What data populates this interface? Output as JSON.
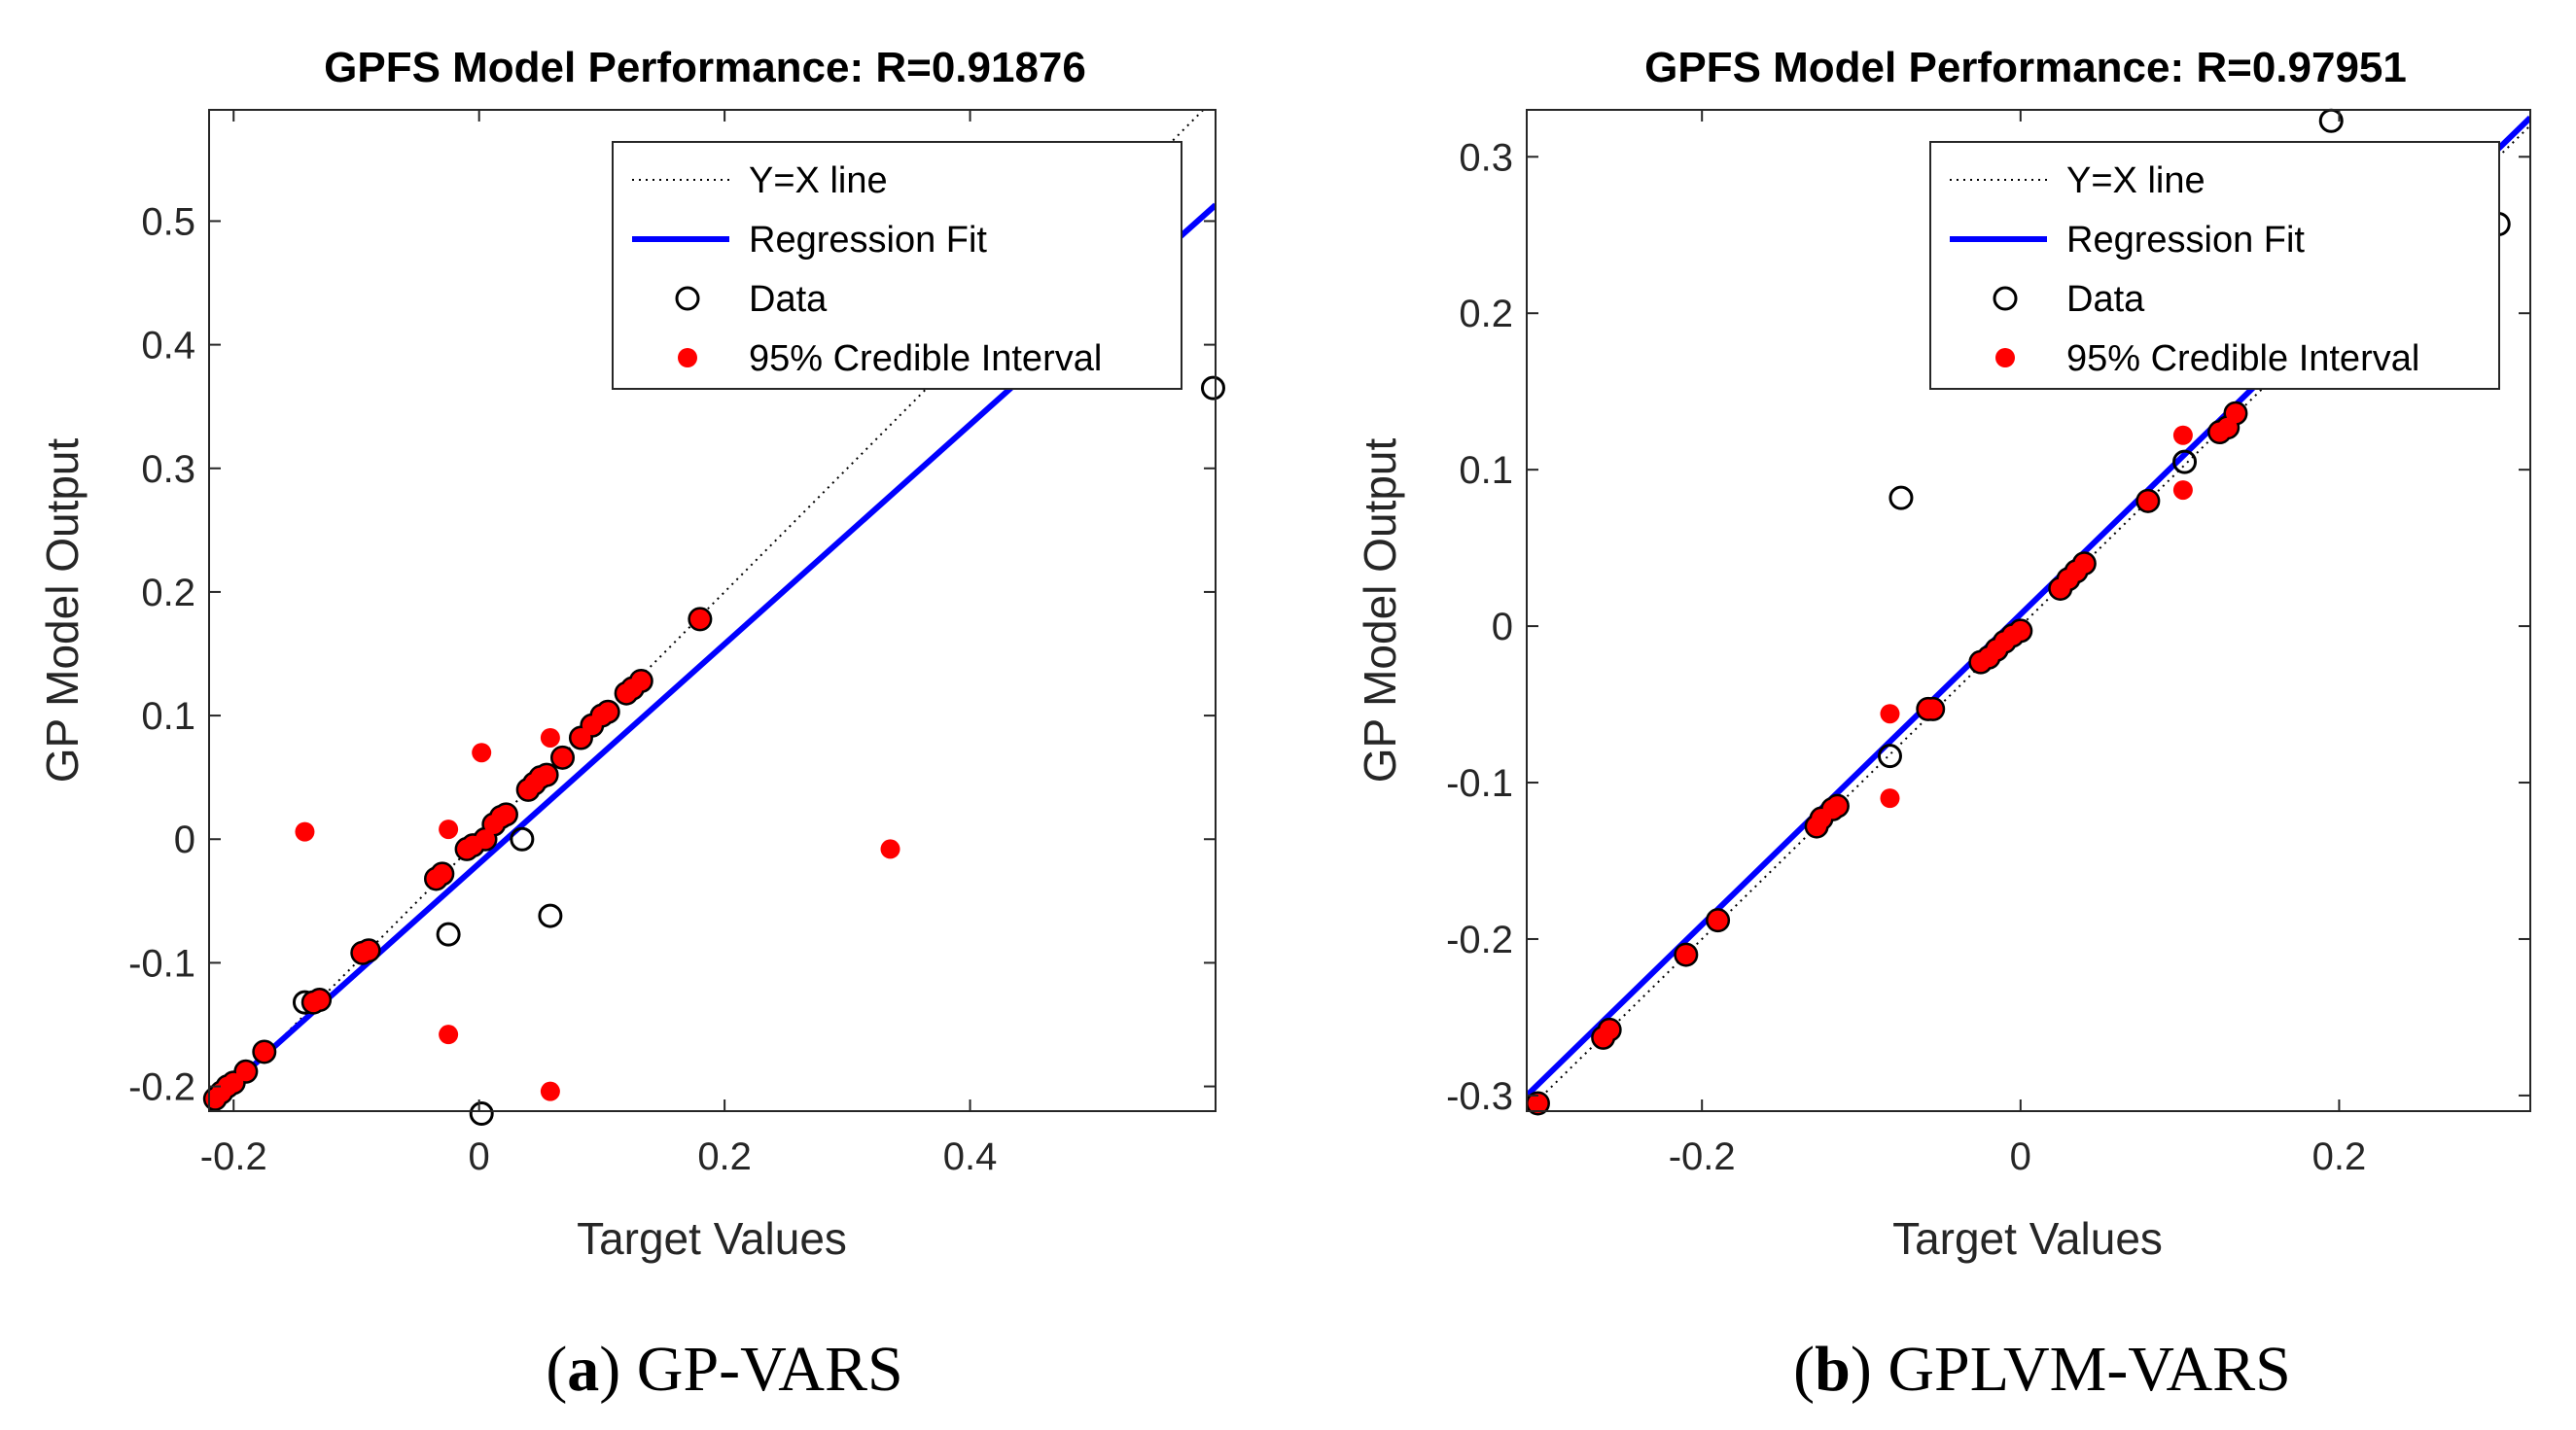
{
  "chart_data": [
    {
      "type": "scatter",
      "title": "GPFS Model Performance: R=0.91876",
      "xlabel": "Target Values",
      "ylabel": "GP Model Output",
      "xlim": [
        -0.22,
        0.6
      ],
      "ylim": [
        -0.22,
        0.59
      ],
      "xticks": [
        -0.2,
        0,
        0.2,
        0.4
      ],
      "xtick_labels": [
        "-0.2",
        "0",
        "0.2",
        "0.4"
      ],
      "yticks": [
        -0.2,
        -0.1,
        0,
        0.1,
        0.2,
        0.3,
        0.4,
        0.5
      ],
      "ytick_labels": [
        "-0.2",
        "-0.1",
        "0",
        "0.1",
        "0.2",
        "0.3",
        "0.4",
        "0.5"
      ],
      "grid": false,
      "legend_position": "top-right",
      "legend": [
        {
          "label": "Y=X line",
          "kind": "dotted-line",
          "color": "#000000"
        },
        {
          "label": "Regression Fit",
          "kind": "line",
          "color": "#0000ff"
        },
        {
          "label": "Data",
          "kind": "open-circle",
          "color": "#000000"
        },
        {
          "label": "95% Credible Interval",
          "kind": "dot",
          "color": "#ff0000"
        }
      ],
      "identity_line": {
        "x": [
          -0.22,
          0.6
        ],
        "y": [
          -0.22,
          0.6
        ]
      },
      "regression_fit": {
        "x": [
          -0.22,
          0.6
        ],
        "y": [
          -0.215,
          0.513
        ]
      },
      "data_points": [
        [
          -0.215,
          -0.21
        ],
        [
          -0.21,
          -0.205
        ],
        [
          -0.205,
          -0.2
        ],
        [
          -0.2,
          -0.197
        ],
        [
          -0.19,
          -0.188
        ],
        [
          -0.175,
          -0.172
        ],
        [
          -0.142,
          -0.132
        ],
        [
          -0.135,
          -0.132
        ],
        [
          -0.13,
          -0.13
        ],
        [
          -0.095,
          -0.092
        ],
        [
          -0.09,
          -0.09
        ],
        [
          -0.035,
          -0.032
        ],
        [
          -0.03,
          -0.028
        ],
        [
          -0.025,
          -0.077
        ],
        [
          -0.01,
          -0.008
        ],
        [
          -0.005,
          -0.005
        ],
        [
          0.002,
          -0.222
        ],
        [
          0.005,
          0.0
        ],
        [
          0.012,
          0.012
        ],
        [
          0.018,
          0.018
        ],
        [
          0.022,
          0.02
        ],
        [
          0.035,
          0.0
        ],
        [
          0.04,
          0.04
        ],
        [
          0.045,
          0.045
        ],
        [
          0.05,
          0.05
        ],
        [
          0.055,
          0.052
        ],
        [
          0.058,
          -0.062
        ],
        [
          0.068,
          0.066
        ],
        [
          0.083,
          0.082
        ],
        [
          0.092,
          0.092
        ],
        [
          0.1,
          0.1
        ],
        [
          0.105,
          0.103
        ],
        [
          0.12,
          0.118
        ],
        [
          0.125,
          0.122
        ],
        [
          0.132,
          0.128
        ],
        [
          0.18,
          0.178
        ],
        [
          0.598,
          0.365
        ]
      ],
      "credible_interval": [
        [
          -0.215,
          -0.21
        ],
        [
          -0.21,
          -0.205
        ],
        [
          -0.205,
          -0.2
        ],
        [
          -0.2,
          -0.197
        ],
        [
          -0.19,
          -0.188
        ],
        [
          -0.175,
          -0.172
        ],
        [
          -0.142,
          0.006
        ],
        [
          -0.135,
          -0.132
        ],
        [
          -0.13,
          -0.13
        ],
        [
          -0.095,
          -0.092
        ],
        [
          -0.09,
          -0.09
        ],
        [
          -0.035,
          -0.032
        ],
        [
          -0.03,
          -0.028
        ],
        [
          -0.025,
          0.008
        ],
        [
          -0.025,
          -0.158
        ],
        [
          -0.01,
          -0.008
        ],
        [
          -0.005,
          -0.005
        ],
        [
          0.002,
          0.07
        ],
        [
          0.005,
          0.0
        ],
        [
          0.012,
          0.012
        ],
        [
          0.018,
          0.018
        ],
        [
          0.022,
          0.02
        ],
        [
          0.04,
          0.04
        ],
        [
          0.045,
          0.045
        ],
        [
          0.05,
          0.05
        ],
        [
          0.055,
          0.052
        ],
        [
          0.058,
          0.082
        ],
        [
          0.058,
          -0.204
        ],
        [
          0.068,
          0.066
        ],
        [
          0.083,
          0.082
        ],
        [
          0.092,
          0.092
        ],
        [
          0.1,
          0.1
        ],
        [
          0.105,
          0.103
        ],
        [
          0.12,
          0.118
        ],
        [
          0.125,
          0.122
        ],
        [
          0.132,
          0.128
        ],
        [
          0.18,
          0.178
        ],
        [
          0.335,
          -0.008
        ]
      ],
      "caption_label": "a",
      "caption_text": "GP-VARS"
    },
    {
      "type": "scatter",
      "title": "GPFS Model Performance: R=0.97951",
      "xlabel": "Target Values",
      "ylabel": "GP Model Output",
      "xlim": [
        -0.31,
        0.32
      ],
      "ylim": [
        -0.31,
        0.33
      ],
      "xticks": [
        -0.2,
        0,
        0.2
      ],
      "xtick_labels": [
        "-0.2",
        "0",
        "0.2"
      ],
      "yticks": [
        -0.3,
        -0.2,
        -0.1,
        0,
        0.1,
        0.2,
        0.3
      ],
      "ytick_labels": [
        "-0.3",
        "-0.2",
        "-0.1",
        "0",
        "0.1",
        "0.2",
        "0.3"
      ],
      "grid": false,
      "legend_position": "top-right",
      "legend": [
        {
          "label": "Y=X line",
          "kind": "dotted-line",
          "color": "#000000"
        },
        {
          "label": "Regression Fit",
          "kind": "line",
          "color": "#0000ff"
        },
        {
          "label": "Data",
          "kind": "open-circle",
          "color": "#000000"
        },
        {
          "label": "95% Credible Interval",
          "kind": "dot",
          "color": "#ff0000"
        }
      ],
      "identity_line": {
        "x": [
          -0.31,
          0.32
        ],
        "y": [
          -0.31,
          0.32
        ]
      },
      "regression_fit": {
        "x": [
          -0.31,
          0.32
        ],
        "y": [
          -0.3,
          0.325
        ]
      },
      "data_points": [
        [
          -0.303,
          -0.305
        ],
        [
          -0.262,
          -0.263
        ],
        [
          -0.258,
          -0.258
        ],
        [
          -0.21,
          -0.21
        ],
        [
          -0.19,
          -0.188
        ],
        [
          -0.128,
          -0.128
        ],
        [
          -0.125,
          -0.123
        ],
        [
          -0.118,
          -0.117
        ],
        [
          -0.115,
          -0.115
        ],
        [
          -0.082,
          -0.083
        ],
        [
          -0.075,
          0.082
        ],
        [
          -0.058,
          -0.053
        ],
        [
          -0.055,
          -0.053
        ],
        [
          -0.025,
          -0.023
        ],
        [
          -0.02,
          -0.02
        ],
        [
          -0.015,
          -0.015
        ],
        [
          -0.01,
          -0.01
        ],
        [
          -0.005,
          -0.006
        ],
        [
          0.0,
          -0.003
        ],
        [
          0.025,
          0.024
        ],
        [
          0.03,
          0.03
        ],
        [
          0.035,
          0.035
        ],
        [
          0.04,
          0.04
        ],
        [
          0.08,
          0.08
        ],
        [
          0.103,
          0.105
        ],
        [
          0.125,
          0.124
        ],
        [
          0.13,
          0.127
        ],
        [
          0.135,
          0.136
        ],
        [
          0.195,
          0.323
        ],
        [
          0.3,
          0.257
        ]
      ],
      "credible_interval": [
        [
          -0.303,
          -0.305
        ],
        [
          -0.262,
          -0.263
        ],
        [
          -0.258,
          -0.258
        ],
        [
          -0.21,
          -0.21
        ],
        [
          -0.19,
          -0.188
        ],
        [
          -0.128,
          -0.128
        ],
        [
          -0.125,
          -0.123
        ],
        [
          -0.118,
          -0.117
        ],
        [
          -0.115,
          -0.115
        ],
        [
          -0.082,
          -0.056
        ],
        [
          -0.082,
          -0.11
        ],
        [
          -0.058,
          -0.053
        ],
        [
          -0.055,
          -0.053
        ],
        [
          -0.025,
          -0.023
        ],
        [
          -0.02,
          -0.02
        ],
        [
          -0.015,
          -0.015
        ],
        [
          -0.01,
          -0.01
        ],
        [
          -0.005,
          -0.006
        ],
        [
          0.0,
          -0.003
        ],
        [
          0.025,
          0.024
        ],
        [
          0.03,
          0.03
        ],
        [
          0.035,
          0.035
        ],
        [
          0.04,
          0.04
        ],
        [
          0.08,
          0.08
        ],
        [
          0.102,
          0.122
        ],
        [
          0.102,
          0.087
        ],
        [
          0.125,
          0.124
        ],
        [
          0.13,
          0.127
        ],
        [
          0.135,
          0.136
        ]
      ],
      "caption_label": "b",
      "caption_text": "GPLVM-VARS"
    }
  ]
}
